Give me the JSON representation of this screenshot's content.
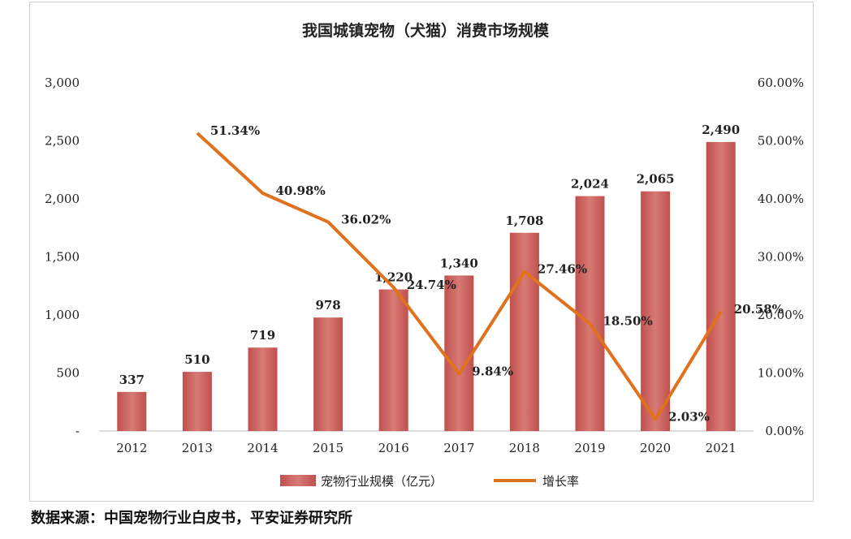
{
  "colors": {
    "bar": "#c0504d",
    "bar_light": "#d77a75",
    "line": "#e0711d"
  },
  "chart_data": {
    "type": "bar",
    "title": "我国城镇宠物（犬猫）消费市场规模",
    "categories": [
      "2012",
      "2013",
      "2014",
      "2015",
      "2016",
      "2017",
      "2018",
      "2019",
      "2020",
      "2021"
    ],
    "series": [
      {
        "name": "宠物行业规模（亿元）",
        "type": "bar",
        "axis": "left",
        "values": [
          337,
          510,
          719,
          978,
          1220,
          1340,
          1708,
          2024,
          2065,
          2490
        ],
        "labels": [
          "337",
          "510",
          "719",
          "978",
          "1,220",
          "1,340",
          "1,708",
          "2,024",
          "2,065",
          "2,490"
        ]
      },
      {
        "name": "增长率",
        "type": "line",
        "axis": "right",
        "values": [
          null,
          51.34,
          40.98,
          36.02,
          24.74,
          9.84,
          27.46,
          18.5,
          2.03,
          20.58
        ],
        "labels": [
          "",
          "51.34%",
          "40.98%",
          "36.02%",
          "24.74%",
          "9.84%",
          "27.46%",
          "18.50%",
          "2.03%",
          "20.58%"
        ]
      }
    ],
    "left_axis": {
      "ylim": [
        0,
        3000
      ],
      "ticks": [
        {
          "value": 0,
          "label": "-"
        },
        {
          "value": 500,
          "label": "500"
        },
        {
          "value": 1000,
          "label": "1,000"
        },
        {
          "value": 1500,
          "label": "1,500"
        },
        {
          "value": 2000,
          "label": "2,000"
        },
        {
          "value": 2500,
          "label": "2,500"
        },
        {
          "value": 3000,
          "label": "3,000"
        }
      ]
    },
    "right_axis": {
      "ylim": [
        0,
        60
      ],
      "ticks": [
        {
          "value": 0,
          "label": "0.00%"
        },
        {
          "value": 10,
          "label": "10.00%"
        },
        {
          "value": 20,
          "label": "20.00%"
        },
        {
          "value": 30,
          "label": "30.00%"
        },
        {
          "value": 40,
          "label": "40.00%"
        },
        {
          "value": 50,
          "label": "50.00%"
        },
        {
          "value": 60,
          "label": "60.00%"
        }
      ]
    },
    "grid": false,
    "legend": "bottom"
  },
  "source_text": "数据来源：中国宠物行业白皮书，平安证券研究所"
}
